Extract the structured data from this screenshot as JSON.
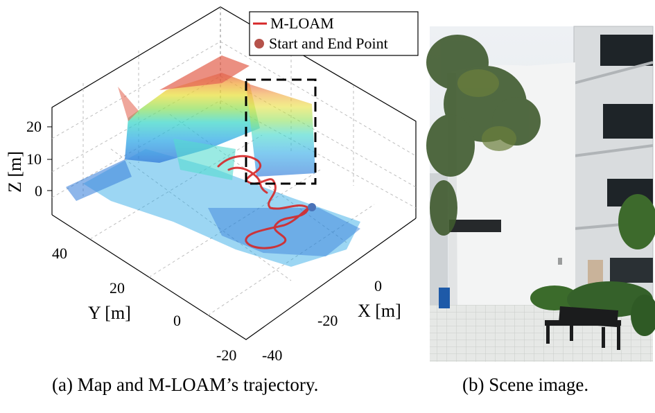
{
  "figure_a": {
    "legend": [
      {
        "label": "M-LOAM",
        "color": "#d62728",
        "kind": "line"
      },
      {
        "label": "Start and End Point",
        "color": "#c0504d",
        "kind": "dot"
      }
    ],
    "z_axis": {
      "label": "Z [m]",
      "ticks": [
        "20",
        "10",
        "0"
      ]
    },
    "y_axis": {
      "label": "Y [m]",
      "ticks": [
        "40",
        "20",
        "0",
        "-20"
      ]
    },
    "x_axis": {
      "label": "X [m]",
      "ticks": [
        "0",
        "-20",
        "-40"
      ]
    },
    "caption": "(a) Map and M-LOAM’s trajectory."
  },
  "figure_b": {
    "caption": "(b) Scene image."
  },
  "colors": {
    "trajectory": "#d62728",
    "start_end_point": "#b5524a",
    "highlight_box": "#000000",
    "colormap": [
      "#1f6fd6",
      "#2aa7e6",
      "#38d6c8",
      "#8fe05a",
      "#e8e03a",
      "#f2a43a",
      "#e0503a"
    ]
  }
}
